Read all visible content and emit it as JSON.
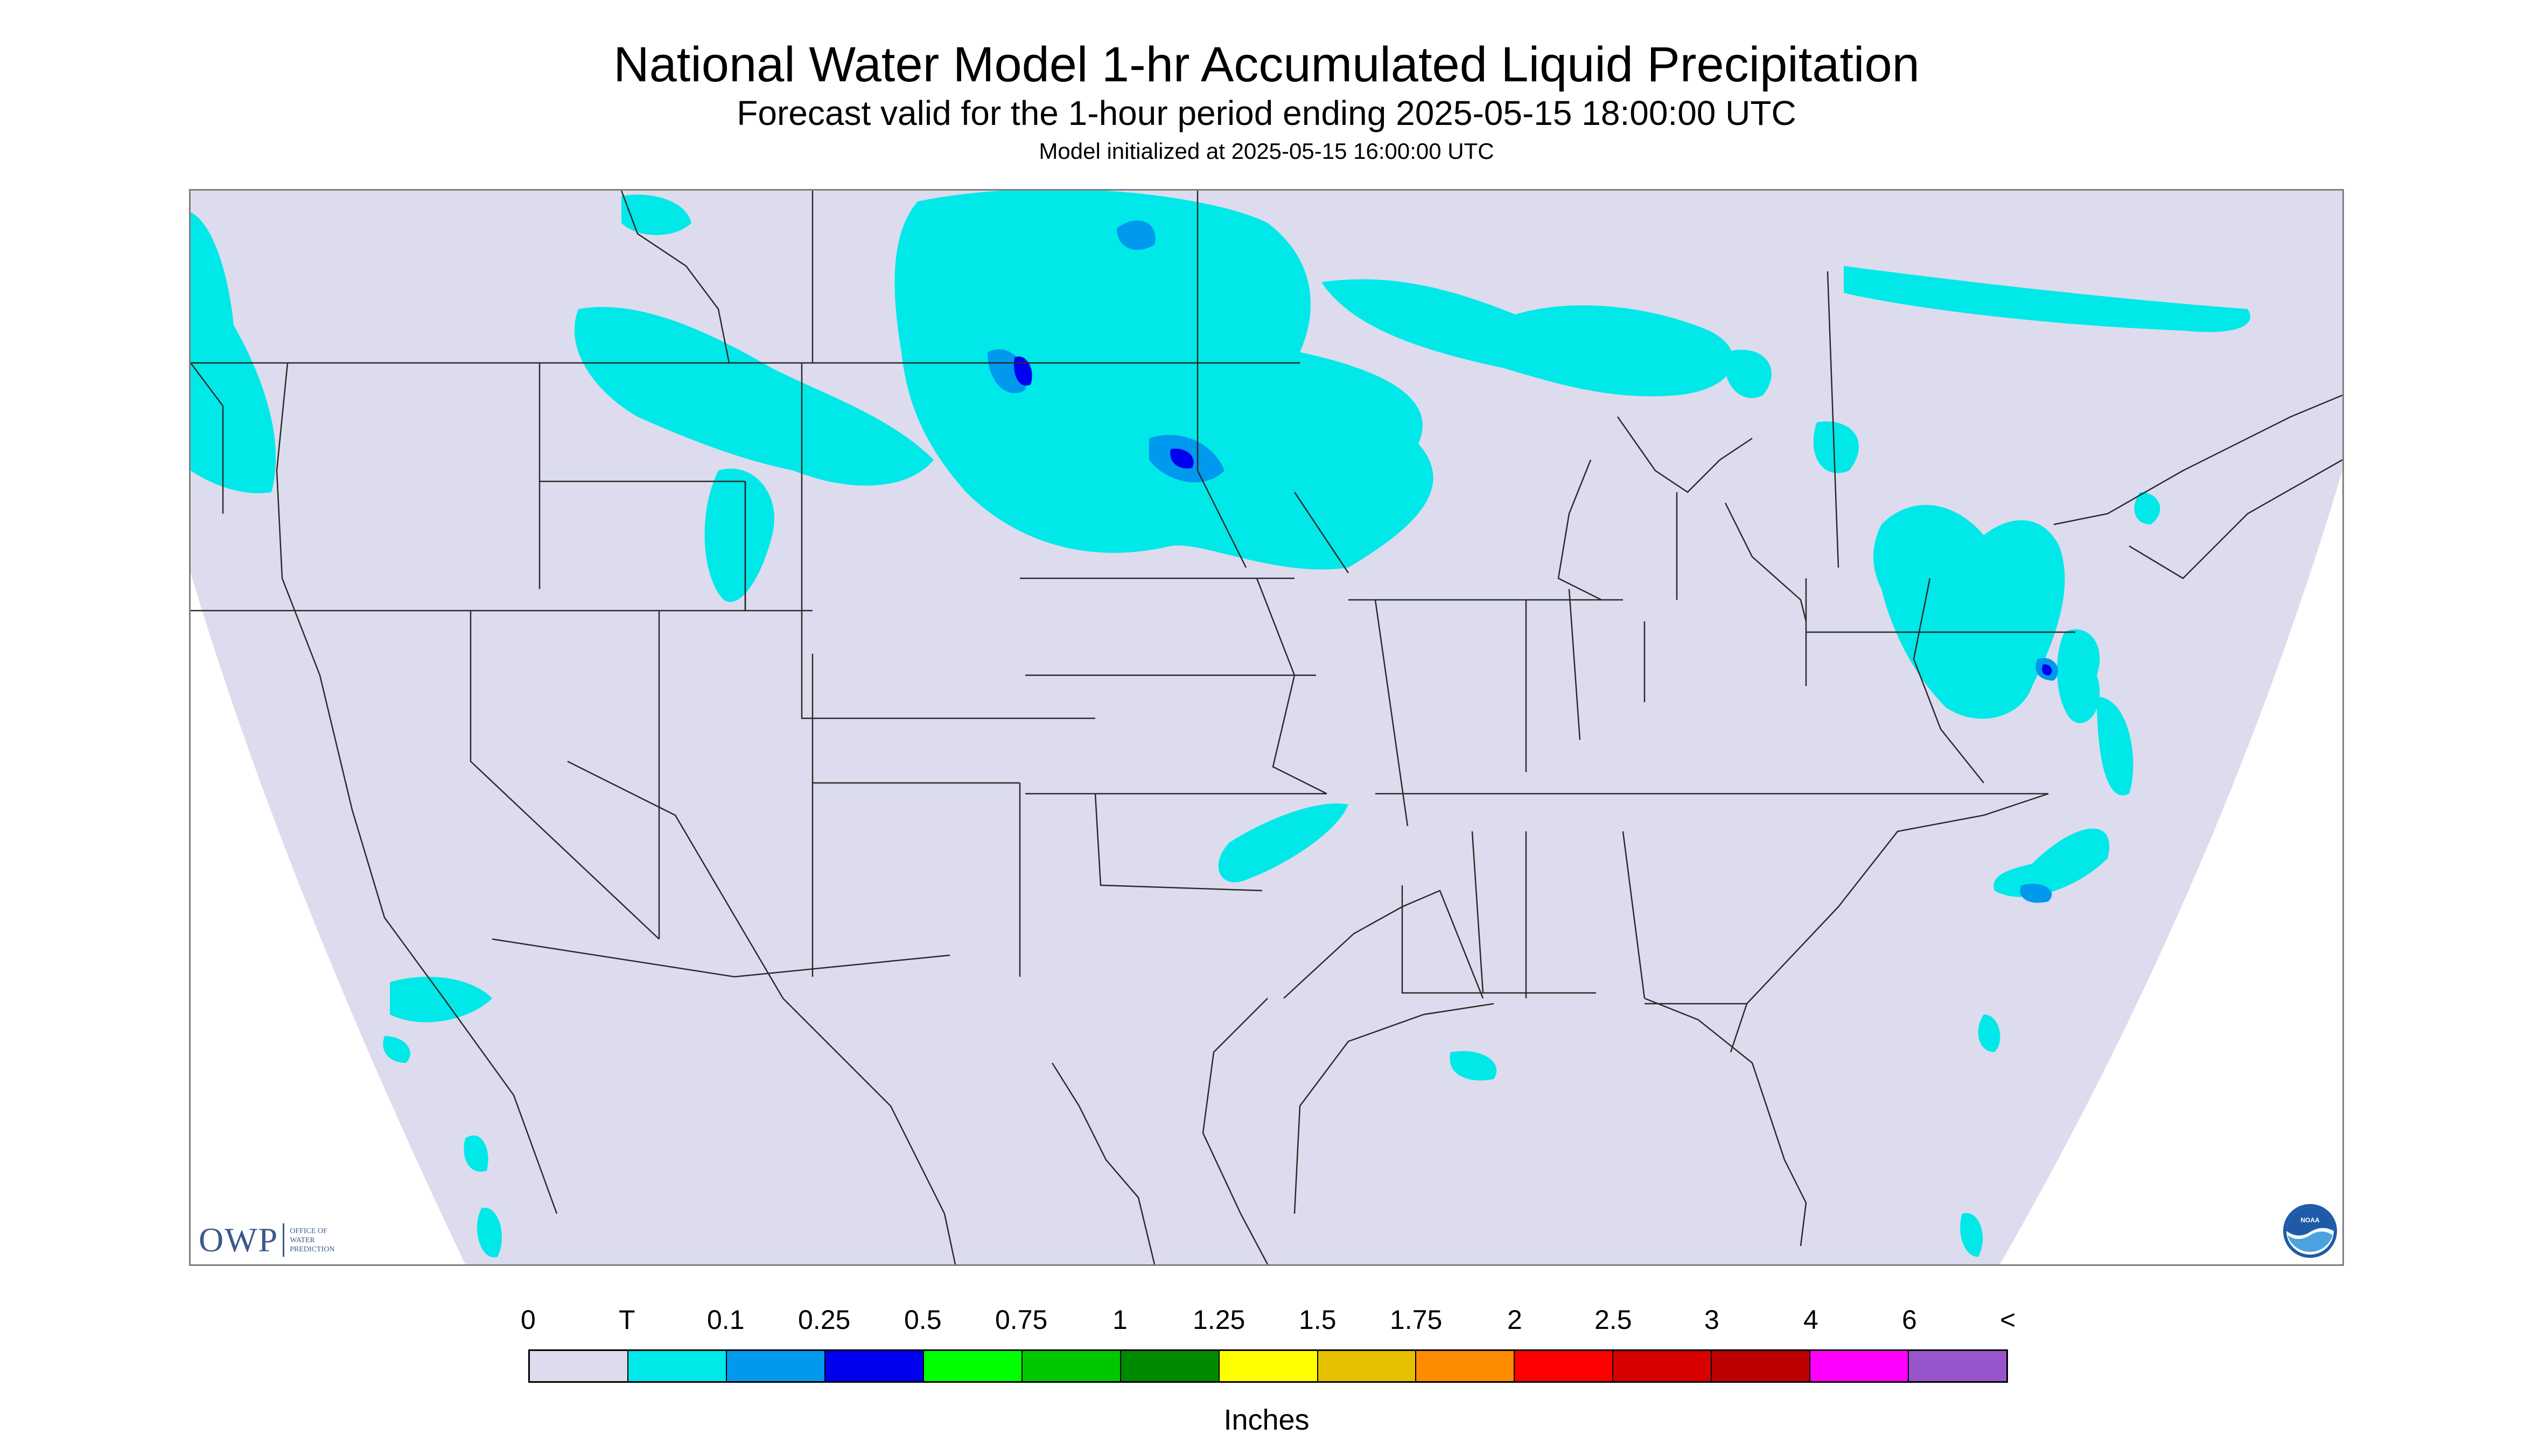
{
  "title": "National Water Model 1-hr Accumulated Liquid Precipitation",
  "subtitle": "Forecast valid for the 1-hour period ending 2025-05-15 18:00:00 UTC",
  "init_line": "Model initialized at 2025-05-15 16:00:00 UTC",
  "colors": {
    "domain_fill": "#dcdcee",
    "outside_fill": "#ffffff",
    "boundary": "#2a2a2a",
    "trace": "#00e8e8",
    "light": "#0099ee",
    "moderate": "#0000f0"
  },
  "logo": {
    "owp_big": "OWP",
    "owp_small": [
      "OFFICE OF",
      "WATER",
      "PREDICTION"
    ],
    "noaa_text": "NOAA"
  },
  "legend": {
    "labels": [
      "0",
      "T",
      "0.1",
      "0.25",
      "0.5",
      "0.75",
      "1",
      "1.25",
      "1.5",
      "1.75",
      "2",
      "2.5",
      "3",
      "4",
      "6",
      "<"
    ],
    "colors": [
      "#dcdcee",
      "#00e8e8",
      "#0099ee",
      "#0000f0",
      "#00ff00",
      "#00c800",
      "#008a00",
      "#ffff00",
      "#e6bf00",
      "#ff8c00",
      "#ff0000",
      "#d80000",
      "#bd0000",
      "#ff00ff",
      "#9955cc"
    ],
    "units": "Inches"
  }
}
